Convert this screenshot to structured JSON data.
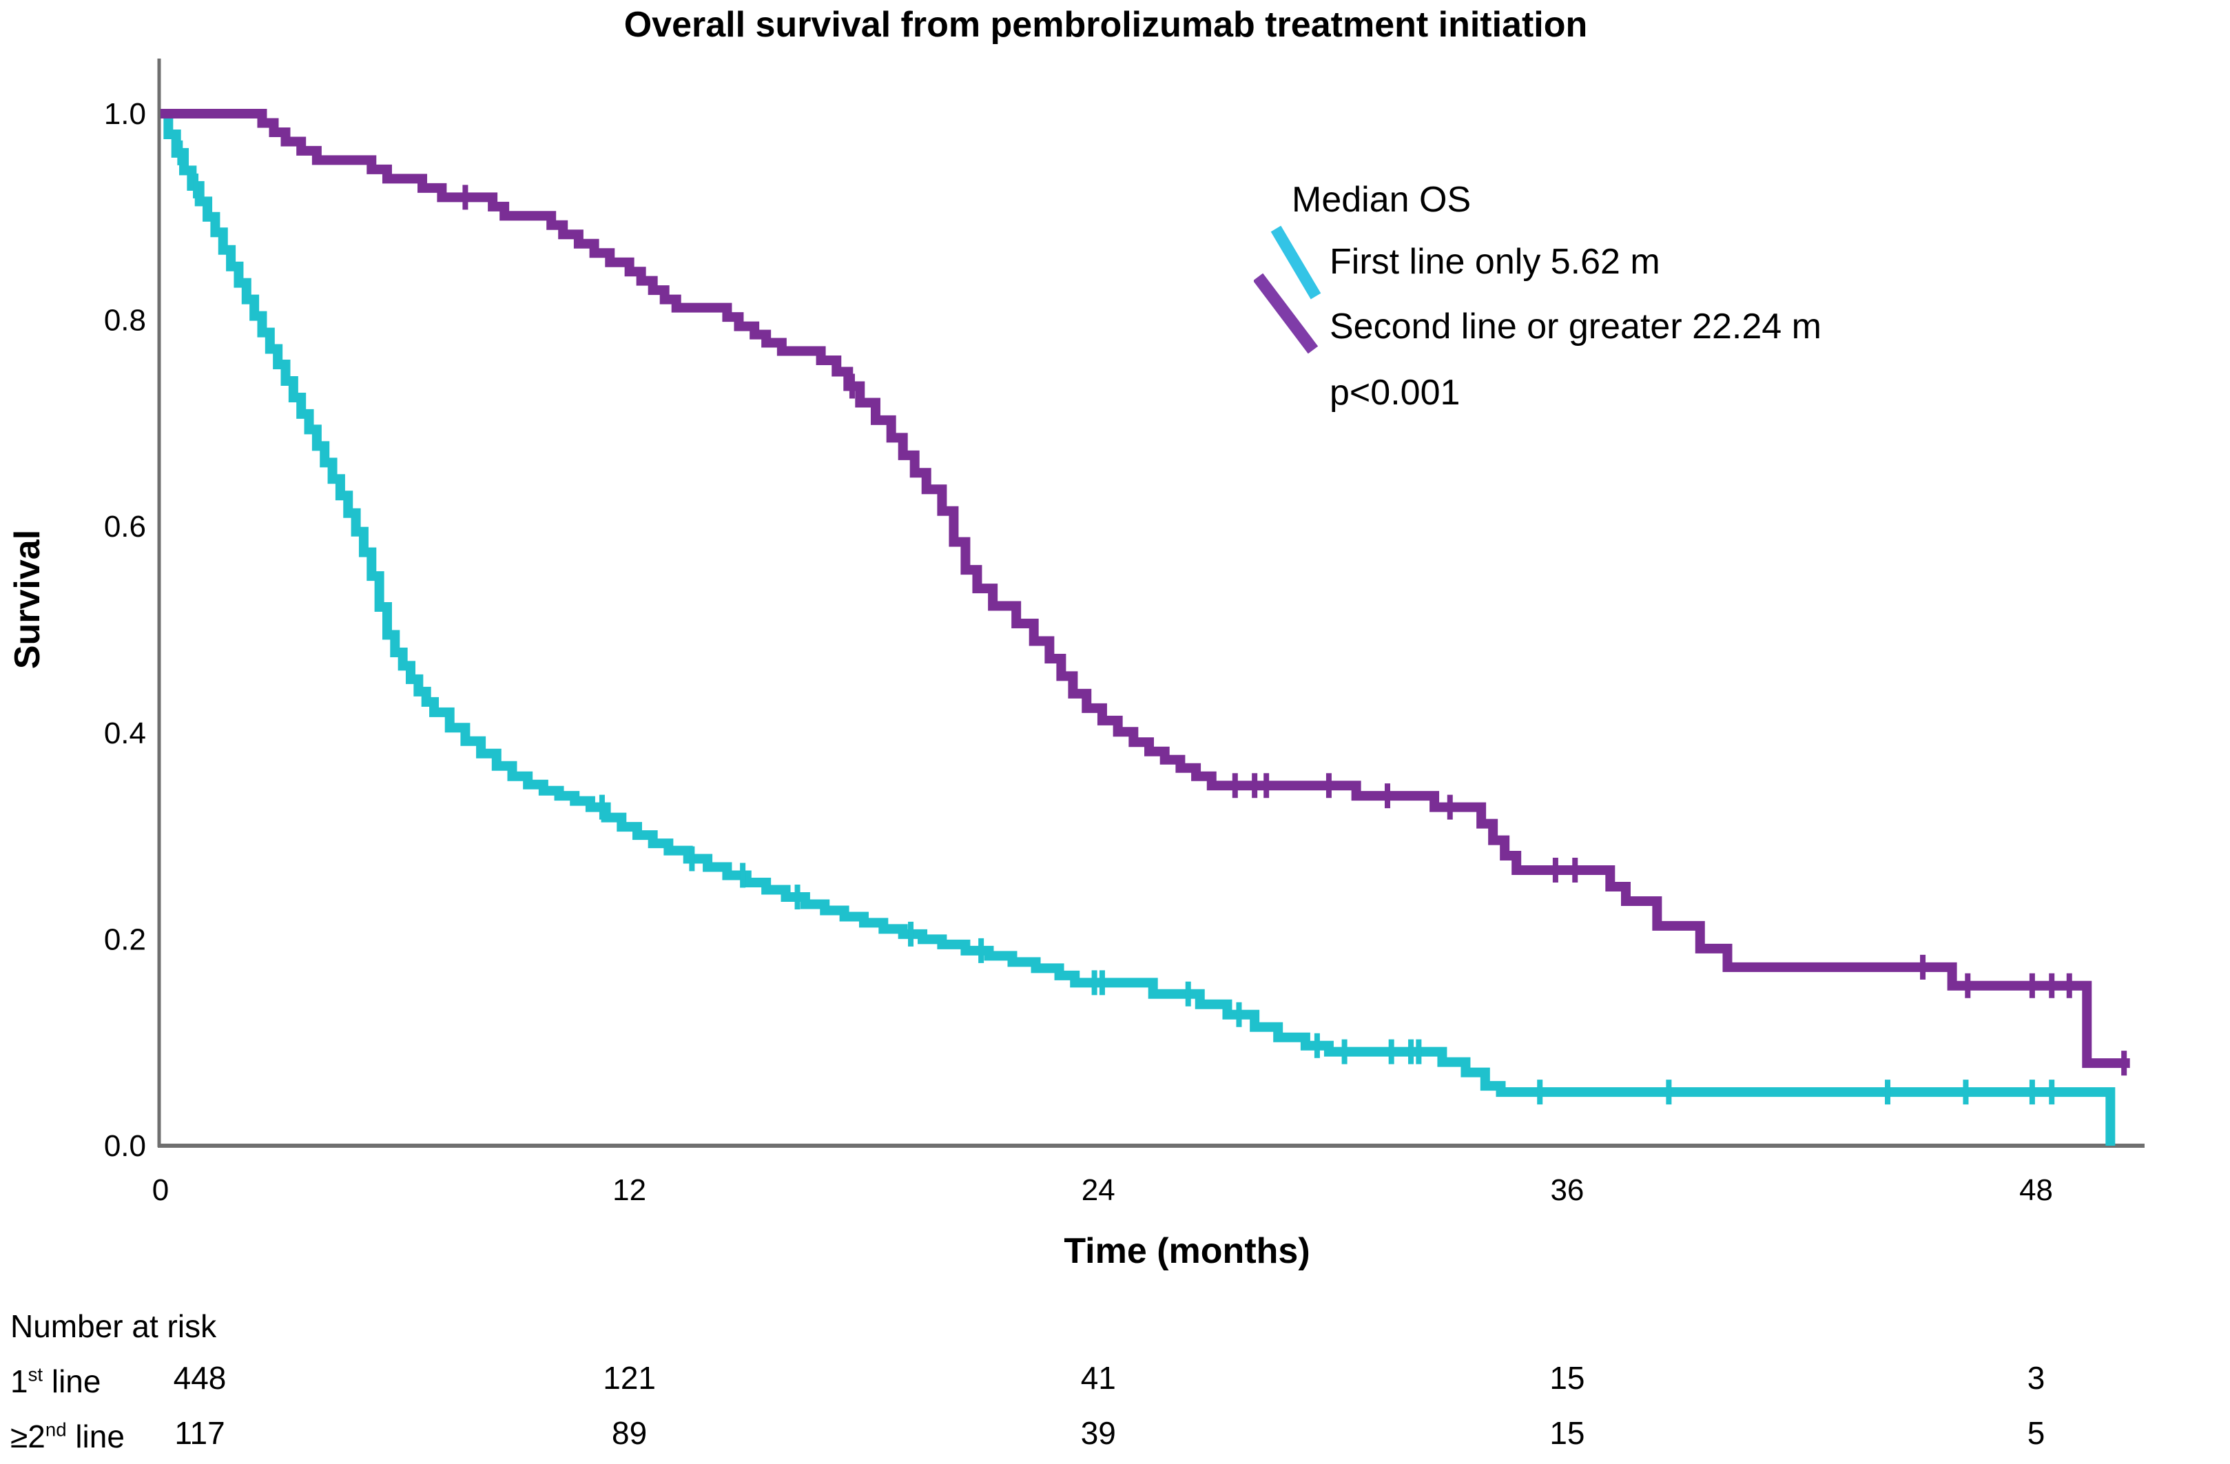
{
  "title": "Overall survival from pembrolizumab treatment initiation",
  "axes": {
    "x_label": "Time (months)",
    "y_label": "Survival",
    "x_ticks": [
      {
        "label": "0",
        "value": 0
      },
      {
        "label": "12",
        "value": 12
      },
      {
        "label": "24",
        "value": 24
      },
      {
        "label": "36",
        "value": 36
      },
      {
        "label": "48",
        "value": 48
      }
    ],
    "y_ticks": [
      {
        "label": "1.0",
        "value": 1.0
      },
      {
        "label": "0.8",
        "value": 0.8
      },
      {
        "label": "0.6",
        "value": 0.6
      },
      {
        "label": "0.4",
        "value": 0.4
      },
      {
        "label": "0.2",
        "value": 0.2
      },
      {
        "label": "0.0",
        "value": 0.0
      }
    ]
  },
  "legend": {
    "heading": "Median OS",
    "items": [
      {
        "label": "First line only 5.62 m",
        "swatch_color": "#33c4e6"
      },
      {
        "label": "Second line or greater 22.24 m",
        "swatch_color": "#7f3ca8"
      }
    ],
    "p_value": "p<0.001"
  },
  "risk_table": {
    "heading": "Number at risk",
    "rows": [
      {
        "label_base": "1",
        "label_sup": "st",
        "label_rest": " line",
        "counts": [
          "448",
          "121",
          "41",
          "15",
          "3"
        ]
      },
      {
        "label_base": "≥2",
        "label_sup": "nd",
        "label_rest": " line",
        "counts": [
          "117",
          "89",
          "39",
          "15",
          "5"
        ]
      }
    ]
  },
  "colors": {
    "axis": "#6f6f6f",
    "background": "#ffffff",
    "text": "#000000",
    "first_line": "#1fc1cd",
    "second_line": "#7a2e95"
  },
  "chart_data": {
    "type": "line",
    "subtype": "kaplan-meier-step",
    "title": "Overall survival from pembrolizumab treatment initiation",
    "xlabel": "Time (months)",
    "ylabel": "Survival",
    "xlim": [
      0,
      50.7
    ],
    "ylim": [
      0,
      1.0
    ],
    "x_ticks": [
      0,
      12,
      24,
      36,
      48
    ],
    "y_ticks": [
      1.0,
      0.8,
      0.6,
      0.4,
      0.2,
      0.0
    ],
    "grid": false,
    "legend_position": "upper right",
    "p_value": "p<0.001",
    "series": [
      {
        "name": "First line only",
        "median_os_months": 5.62,
        "n_at_risk": {
          "0": 448,
          "12": 121,
          "24": 41,
          "36": 15,
          "48": 3
        },
        "color": "#1fc1cd",
        "end_t": 49.9,
        "points": [
          [
            0,
            1.0
          ],
          [
            0.2,
            0.98
          ],
          [
            0.4,
            0.962
          ],
          [
            0.6,
            0.945
          ],
          [
            0.8,
            0.93
          ],
          [
            1.0,
            0.915
          ],
          [
            1.2,
            0.9
          ],
          [
            1.4,
            0.885
          ],
          [
            1.6,
            0.868
          ],
          [
            1.8,
            0.852
          ],
          [
            2.0,
            0.836
          ],
          [
            2.2,
            0.82
          ],
          [
            2.4,
            0.804
          ],
          [
            2.6,
            0.788
          ],
          [
            2.8,
            0.772
          ],
          [
            3.0,
            0.757
          ],
          [
            3.2,
            0.741
          ],
          [
            3.4,
            0.725
          ],
          [
            3.6,
            0.709
          ],
          [
            3.8,
            0.694
          ],
          [
            4.0,
            0.678
          ],
          [
            4.2,
            0.662
          ],
          [
            4.4,
            0.646
          ],
          [
            4.6,
            0.63
          ],
          [
            4.8,
            0.613
          ],
          [
            5.0,
            0.595
          ],
          [
            5.2,
            0.575
          ],
          [
            5.4,
            0.552
          ],
          [
            5.6,
            0.522
          ],
          [
            5.8,
            0.495
          ],
          [
            6.0,
            0.478
          ],
          [
            6.2,
            0.465
          ],
          [
            6.4,
            0.452
          ],
          [
            6.6,
            0.44
          ],
          [
            6.8,
            0.43
          ],
          [
            7.0,
            0.42
          ],
          [
            7.4,
            0.405
          ],
          [
            7.8,
            0.392
          ],
          [
            8.2,
            0.38
          ],
          [
            8.6,
            0.368
          ],
          [
            9.0,
            0.358
          ],
          [
            9.4,
            0.35
          ],
          [
            9.8,
            0.344
          ],
          [
            10.2,
            0.339
          ],
          [
            10.6,
            0.334
          ],
          [
            11.0,
            0.328
          ],
          [
            11.4,
            0.318
          ],
          [
            11.8,
            0.309
          ],
          [
            12.2,
            0.301
          ],
          [
            12.6,
            0.293
          ],
          [
            13.0,
            0.286
          ],
          [
            13.5,
            0.278
          ],
          [
            14.0,
            0.27
          ],
          [
            14.5,
            0.262
          ],
          [
            15.0,
            0.255
          ],
          [
            15.5,
            0.248
          ],
          [
            16.0,
            0.241
          ],
          [
            16.5,
            0.234
          ],
          [
            17.0,
            0.228
          ],
          [
            17.5,
            0.222
          ],
          [
            18.0,
            0.216
          ],
          [
            18.5,
            0.21
          ],
          [
            19.0,
            0.205
          ],
          [
            19.5,
            0.2
          ],
          [
            20.0,
            0.195
          ],
          [
            20.6,
            0.189
          ],
          [
            21.2,
            0.184
          ],
          [
            21.8,
            0.178
          ],
          [
            22.4,
            0.172
          ],
          [
            23.0,
            0.165
          ],
          [
            23.4,
            0.158
          ],
          [
            25.4,
            0.147
          ],
          [
            26.6,
            0.137
          ],
          [
            27.3,
            0.127
          ],
          [
            28.0,
            0.115
          ],
          [
            28.6,
            0.105
          ],
          [
            29.3,
            0.097
          ],
          [
            29.9,
            0.091
          ],
          [
            32.8,
            0.081
          ],
          [
            33.4,
            0.071
          ],
          [
            33.9,
            0.058
          ],
          [
            34.3,
            0.052
          ],
          [
            49.9,
            0.0
          ]
        ],
        "censor_ticks": [
          0.5,
          0.9,
          11.3,
          13.6,
          14.9,
          16.3,
          19.2,
          21.0,
          23.9,
          24.1,
          26.3,
          27.6,
          29.6,
          30.3,
          31.5,
          32.0,
          32.2,
          35.3,
          38.6,
          44.2,
          46.2,
          47.9,
          48.4
        ]
      },
      {
        "name": "Second line or greater",
        "median_os_months": 22.24,
        "n_at_risk": {
          "0": 117,
          "12": 89,
          "24": 39,
          "36": 15,
          "48": 5
        },
        "color": "#7a2e95",
        "end_t": 50.4,
        "points": [
          [
            0,
            1.0
          ],
          [
            2.6,
            0.991
          ],
          [
            2.9,
            0.982
          ],
          [
            3.2,
            0.973
          ],
          [
            3.6,
            0.964
          ],
          [
            4.0,
            0.955
          ],
          [
            5.4,
            0.946
          ],
          [
            5.8,
            0.937
          ],
          [
            6.7,
            0.928
          ],
          [
            7.2,
            0.919
          ],
          [
            8.5,
            0.91
          ],
          [
            8.8,
            0.901
          ],
          [
            10.0,
            0.892
          ],
          [
            10.3,
            0.883
          ],
          [
            10.7,
            0.874
          ],
          [
            11.1,
            0.865
          ],
          [
            11.5,
            0.856
          ],
          [
            12.0,
            0.847
          ],
          [
            12.3,
            0.838
          ],
          [
            12.6,
            0.829
          ],
          [
            12.9,
            0.82
          ],
          [
            13.2,
            0.812
          ],
          [
            14.5,
            0.803
          ],
          [
            14.8,
            0.794
          ],
          [
            15.2,
            0.786
          ],
          [
            15.5,
            0.778
          ],
          [
            15.9,
            0.77
          ],
          [
            16.9,
            0.761
          ],
          [
            17.3,
            0.75
          ],
          [
            17.6,
            0.736
          ],
          [
            17.9,
            0.72
          ],
          [
            18.3,
            0.703
          ],
          [
            18.7,
            0.686
          ],
          [
            19.0,
            0.669
          ],
          [
            19.3,
            0.652
          ],
          [
            19.6,
            0.636
          ],
          [
            20.0,
            0.615
          ],
          [
            20.3,
            0.585
          ],
          [
            20.6,
            0.558
          ],
          [
            20.9,
            0.54
          ],
          [
            21.3,
            0.523
          ],
          [
            21.9,
            0.506
          ],
          [
            22.35,
            0.489
          ],
          [
            22.75,
            0.472
          ],
          [
            23.05,
            0.455
          ],
          [
            23.35,
            0.438
          ],
          [
            23.7,
            0.424
          ],
          [
            24.1,
            0.412
          ],
          [
            24.5,
            0.401
          ],
          [
            24.9,
            0.391
          ],
          [
            25.3,
            0.382
          ],
          [
            25.7,
            0.374
          ],
          [
            26.1,
            0.366
          ],
          [
            26.5,
            0.358
          ],
          [
            26.9,
            0.349
          ],
          [
            30.6,
            0.339
          ],
          [
            32.6,
            0.328
          ],
          [
            33.8,
            0.312
          ],
          [
            34.1,
            0.296
          ],
          [
            34.4,
            0.281
          ],
          [
            34.7,
            0.267
          ],
          [
            37.1,
            0.251
          ],
          [
            37.5,
            0.237
          ],
          [
            38.3,
            0.213
          ],
          [
            39.4,
            0.191
          ],
          [
            40.1,
            0.173
          ],
          [
            45.85,
            0.155
          ],
          [
            49.3,
            0.08
          ]
        ],
        "censor_ticks": [
          7.8,
          17.7,
          27.5,
          28.0,
          28.3,
          29.9,
          31.4,
          33.0,
          35.7,
          36.2,
          45.1,
          46.25,
          47.9,
          48.4,
          48.85,
          50.25
        ]
      }
    ]
  }
}
